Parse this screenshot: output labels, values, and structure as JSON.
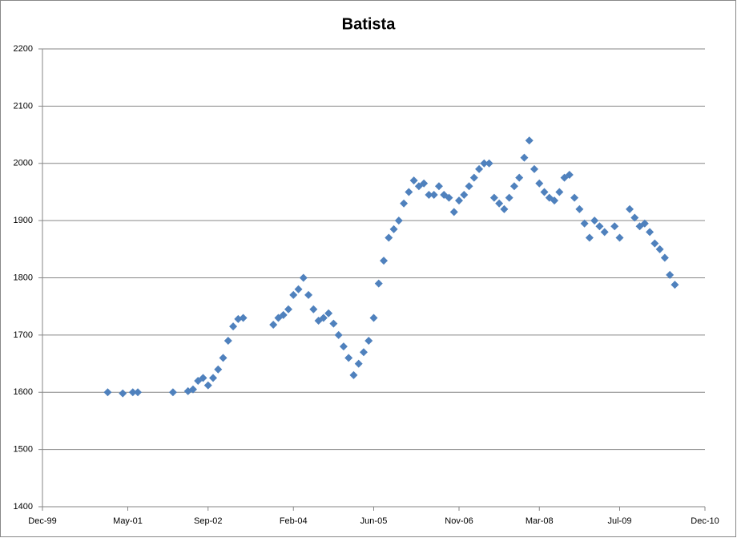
{
  "chart_data": {
    "type": "scatter",
    "title": "Batista",
    "x": [
      "2001-01",
      "2001-04",
      "2001-06",
      "2001-07",
      "2002-02",
      "2002-05",
      "2002-06",
      "2002-07",
      "2002-08",
      "2002-09",
      "2002-10",
      "2002-11",
      "2002-12",
      "2003-01",
      "2003-02",
      "2003-03",
      "2003-04",
      "2003-10",
      "2003-11",
      "2003-12",
      "2004-01",
      "2004-02",
      "2004-03",
      "2004-04",
      "2004-05",
      "2004-06",
      "2004-07",
      "2004-08",
      "2004-09",
      "2004-10",
      "2004-11",
      "2004-12",
      "2005-01",
      "2005-02",
      "2005-03",
      "2005-04",
      "2005-05",
      "2005-06",
      "2005-07",
      "2005-08",
      "2005-09",
      "2005-10",
      "2005-11",
      "2005-12",
      "2006-01",
      "2006-02",
      "2006-03",
      "2006-04",
      "2006-05",
      "2006-06",
      "2006-07",
      "2006-08",
      "2006-09",
      "2006-10",
      "2006-11",
      "2006-12",
      "2007-01",
      "2007-02",
      "2007-03",
      "2007-04",
      "2007-05",
      "2007-06",
      "2007-07",
      "2007-08",
      "2007-09",
      "2007-10",
      "2007-11",
      "2007-12",
      "2008-01",
      "2008-02",
      "2008-03",
      "2008-04",
      "2008-05",
      "2008-06",
      "2008-07",
      "2008-08",
      "2008-09",
      "2008-10",
      "2008-11",
      "2008-12",
      "2009-01",
      "2009-02",
      "2009-03",
      "2009-04",
      "2009-06",
      "2009-07",
      "2009-09",
      "2009-10",
      "2009-11",
      "2009-12",
      "2010-01",
      "2010-02",
      "2010-03",
      "2010-04",
      "2010-05",
      "2010-06"
    ],
    "series": [
      {
        "name": "Batista",
        "color": "#4f81bd",
        "values": [
          1600,
          1598,
          1600,
          1600,
          1600,
          1602,
          1605,
          1620,
          1625,
          1612,
          1625,
          1640,
          1660,
          1690,
          1715,
          1728,
          1730,
          1718,
          1730,
          1735,
          1745,
          1770,
          1780,
          1800,
          1770,
          1745,
          1725,
          1730,
          1738,
          1720,
          1700,
          1680,
          1660,
          1630,
          1650,
          1670,
          1690,
          1730,
          1790,
          1830,
          1870,
          1885,
          1900,
          1930,
          1950,
          1970,
          1960,
          1965,
          1945,
          1945,
          1960,
          1945,
          1940,
          1915,
          1935,
          1945,
          1960,
          1975,
          1990,
          2000,
          2000,
          1940,
          1930,
          1920,
          1940,
          1960,
          1975,
          2010,
          2040,
          1990,
          1965,
          1950,
          1940,
          1935,
          1950,
          1975,
          1980,
          1940,
          1920,
          1895,
          1870,
          1900,
          1890,
          1880,
          1890,
          1870,
          1920,
          1905,
          1890,
          1895,
          1880,
          1860,
          1850,
          1835,
          1805,
          1788
        ]
      }
    ],
    "xlim": [
      "1999-12",
      "2010-12"
    ],
    "xticks": [
      {
        "value": "1999-12",
        "label": "Dec-99"
      },
      {
        "value": "2001-05",
        "label": "May-01"
      },
      {
        "value": "2002-09",
        "label": "Sep-02"
      },
      {
        "value": "2004-02",
        "label": "Feb-04"
      },
      {
        "value": "2005-06",
        "label": "Jun-05"
      },
      {
        "value": "2006-11",
        "label": "Nov-06"
      },
      {
        "value": "2008-03",
        "label": "Mar-08"
      },
      {
        "value": "2009-07",
        "label": "Jul-09"
      },
      {
        "value": "2010-12",
        "label": "Dec-10"
      }
    ],
    "ylim": [
      1400,
      2200
    ],
    "yticks": [
      1400,
      1500,
      1600,
      1700,
      1800,
      1900,
      2000,
      2100,
      2200
    ],
    "grid": true
  }
}
